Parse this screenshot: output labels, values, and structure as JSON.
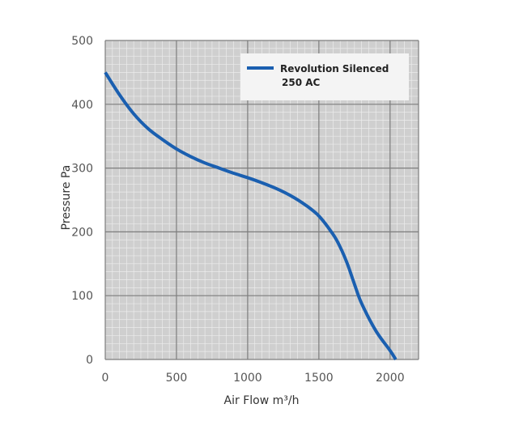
{
  "chart_data": {
    "type": "line",
    "title": "",
    "xlabel": "Air Flow m³/h",
    "ylabel": "Pressure Pa",
    "xlim": [
      0,
      2200
    ],
    "ylim": [
      0,
      500
    ],
    "x_ticks": [
      "0",
      "500",
      "1000",
      "1500",
      "2000"
    ],
    "y_ticks": [
      "0",
      "100",
      "200",
      "300",
      "400",
      "500"
    ],
    "grid": "major and minor",
    "legend_position": "top-right",
    "series": [
      {
        "name_line1": "Revolution Silenced",
        "name_line2": "250 AC",
        "color": "#1a5fb0",
        "x": [
          0,
          100,
          200,
          300,
          400,
          500,
          600,
          700,
          800,
          900,
          1000,
          1100,
          1200,
          1300,
          1400,
          1500,
          1600,
          1650,
          1700,
          1750,
          1800,
          1900,
          2000,
          2040
        ],
        "y": [
          450,
          415,
          385,
          362,
          345,
          330,
          318,
          308,
          300,
          292,
          285,
          277,
          268,
          257,
          243,
          225,
          196,
          176,
          150,
          118,
          88,
          45,
          14,
          0
        ]
      }
    ]
  },
  "colors": {
    "plot_background": "#cfcfcf",
    "major_grid": "#7d7d7d",
    "minor_grid": "#ececec",
    "legend_background": "#f4f4f4"
  }
}
